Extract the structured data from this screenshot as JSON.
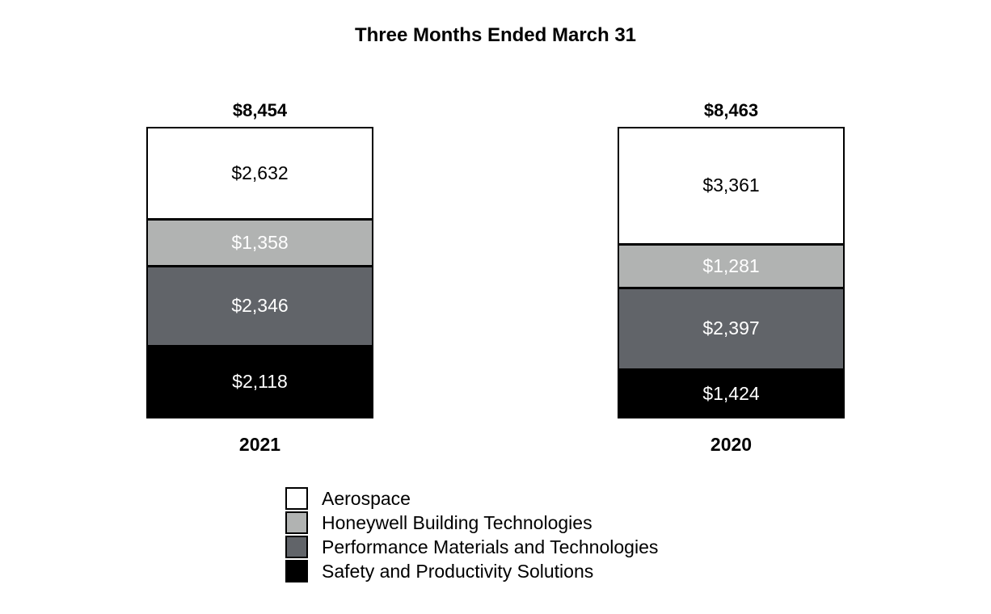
{
  "chart_data": {
    "type": "bar",
    "stacked": true,
    "title": "Three Months Ended March 31",
    "categories": [
      "2021",
      "2020"
    ],
    "totals": [
      8454,
      8463
    ],
    "total_labels": [
      "$8,454",
      "$8,463"
    ],
    "series": [
      {
        "name": "Aerospace",
        "color": "#ffffff",
        "label_color": "#000000",
        "values": [
          2632,
          3361
        ],
        "labels": [
          "$2,632",
          "$3,361"
        ]
      },
      {
        "name": "Honeywell Building Technologies",
        "color": "#b1b3b2",
        "label_color": "#ffffff",
        "values": [
          1358,
          1281
        ],
        "labels": [
          "$1,358",
          "$1,281"
        ]
      },
      {
        "name": "Performance Materials and Technologies",
        "color": "#616469",
        "label_color": "#ffffff",
        "values": [
          2346,
          2397
        ],
        "labels": [
          "$2,346",
          "$2,397"
        ]
      },
      {
        "name": "Safety and Productivity Solutions",
        "color": "#000000",
        "label_color": "#ffffff",
        "values": [
          2118,
          1424
        ],
        "labels": [
          "$2,118",
          "$1,424"
        ]
      }
    ],
    "layout_hints": {
      "legend_position": "bottom-left-of-center",
      "grid": false,
      "axes_visible": false,
      "border_color": "#000000",
      "background": "#ffffff"
    }
  }
}
